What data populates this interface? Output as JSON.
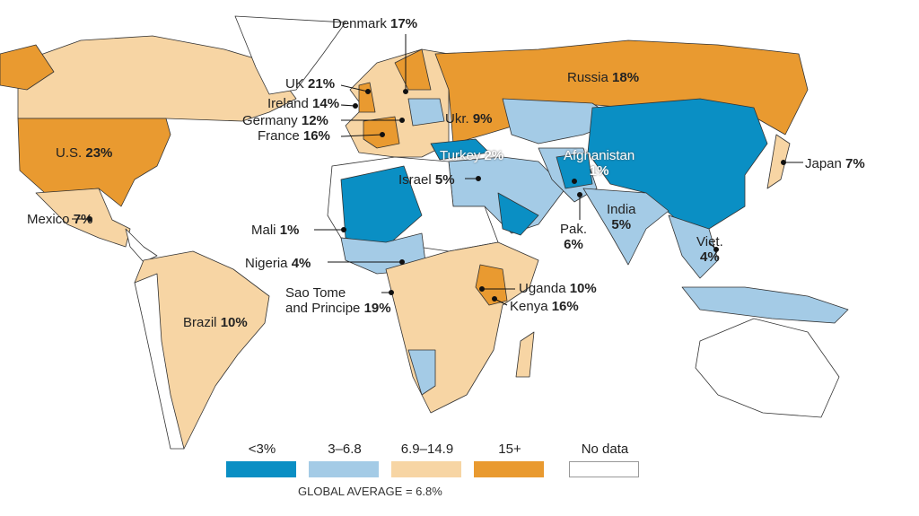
{
  "colors": {
    "lt3": "#0a8fc4",
    "3to6.8": "#a4cbe6",
    "6.9to14.9": "#f7d5a4",
    "15plus": "#e99a30",
    "nodata": "#ffffff"
  },
  "legend": {
    "items": [
      {
        "label": "<3%",
        "key": "lt3"
      },
      {
        "label": "3–6.8",
        "key": "3to6.8"
      },
      {
        "label": "6.9–14.9",
        "key": "6.9to14.9"
      },
      {
        "label": "15+",
        "key": "15plus"
      },
      {
        "label": "No data",
        "key": "nodata"
      }
    ],
    "global_average": "GLOBAL AVERAGE = 6.8%"
  },
  "countries": [
    {
      "name": "Denmark",
      "value": "17%"
    },
    {
      "name": "UK",
      "value": "21%"
    },
    {
      "name": "Ireland",
      "value": "14%"
    },
    {
      "name": "Germany",
      "value": "12%"
    },
    {
      "name": "France",
      "value": "16%"
    },
    {
      "name": "Russia",
      "value": "18%"
    },
    {
      "name": "Ukr.",
      "value": "9%"
    },
    {
      "name": "Turkey",
      "value": "2%"
    },
    {
      "name": "Israel",
      "value": "5%"
    },
    {
      "name": "Afghanistan",
      "value": "1%"
    },
    {
      "name": "Japan",
      "value": "7%"
    },
    {
      "name": "U.S.",
      "value": "23%"
    },
    {
      "name": "Mexico",
      "value": "7%"
    },
    {
      "name": "Mali",
      "value": "1%"
    },
    {
      "name": "Nigeria",
      "value": "4%"
    },
    {
      "name": "Sao Tome",
      "name2": "and Principe",
      "value": "19%"
    },
    {
      "name": "Uganda",
      "value": "10%"
    },
    {
      "name": "Kenya",
      "value": "16%"
    },
    {
      "name": "Brazil",
      "value": "10%"
    },
    {
      "name": "India",
      "value": "5%"
    },
    {
      "name": "Pak.",
      "value": "6%"
    },
    {
      "name": "Viet.",
      "value": "4%"
    }
  ]
}
